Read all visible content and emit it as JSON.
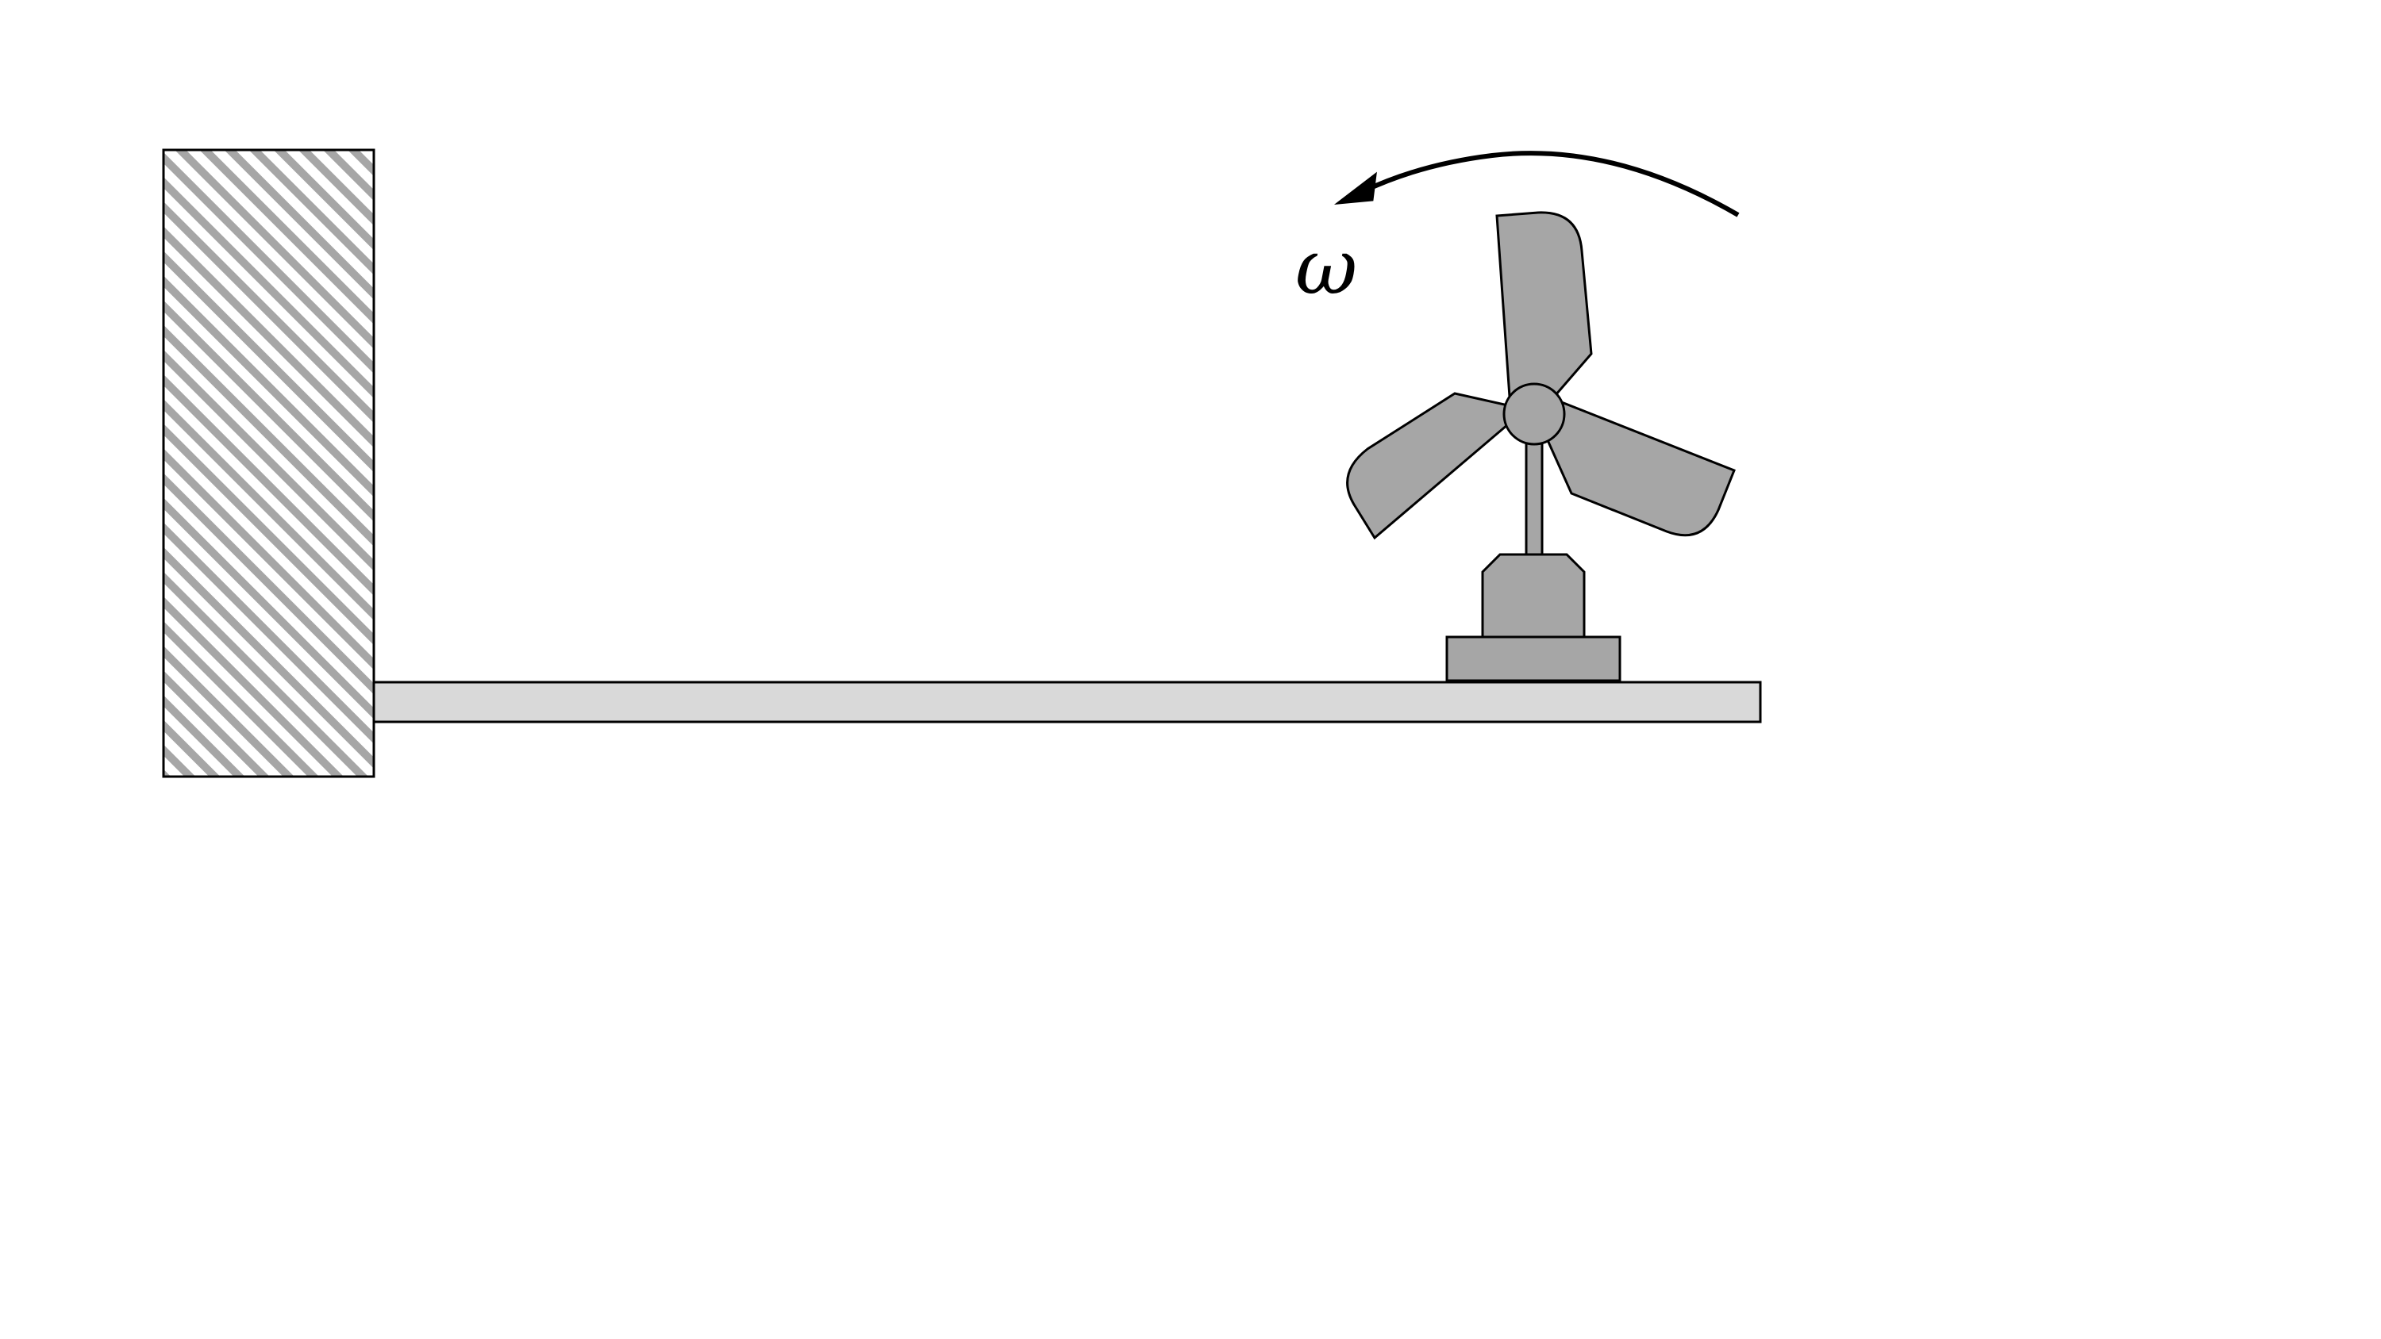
{
  "labels": {
    "angular_velocity_symbol": "ω"
  },
  "colors": {
    "background": "#ffffff",
    "outline": "#000000",
    "fan_fill": "#a6a6a6",
    "beam_fill": "#d9d9d9",
    "wall_hatch": "#a6a6a6"
  },
  "icons": {
    "fan": "fan-icon",
    "rotation_arrow": "curved-arrow-icon",
    "wall": "hatched-wall"
  }
}
